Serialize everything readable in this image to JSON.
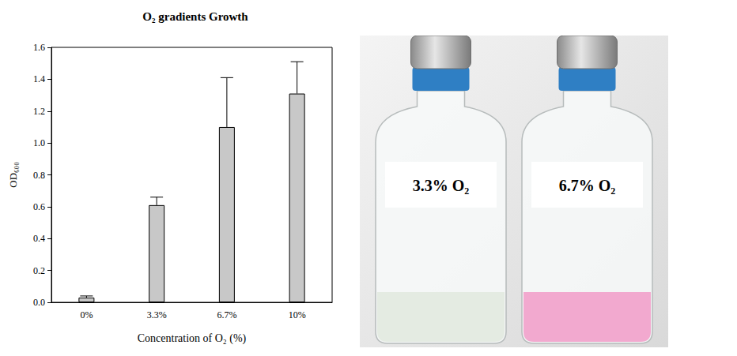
{
  "chart_data": {
    "type": "bar",
    "title": "O₂ gradients Growth",
    "x_label": "Concentration of O₂ (%)",
    "y_label": "OD₆₀₀",
    "categories": [
      "0%",
      "3.3%",
      "6.7%",
      "10%"
    ],
    "values": [
      0.03,
      0.61,
      1.1,
      1.31
    ],
    "errors": [
      0.01,
      0.05,
      0.31,
      0.2
    ],
    "color": "#c8c8c8",
    "ylim": [
      0,
      1.6
    ],
    "yticks": [
      {
        "value": 0,
        "label": "0.0"
      },
      0.2,
      0.4,
      0.6,
      0.8,
      {
        "value": 1,
        "label": "1.0"
      },
      1.2,
      1.4,
      1.6
    ],
    "grid": false
  },
  "photo": {
    "labels": [
      "3.3% O₂",
      "6.7% O₂"
    ]
  }
}
